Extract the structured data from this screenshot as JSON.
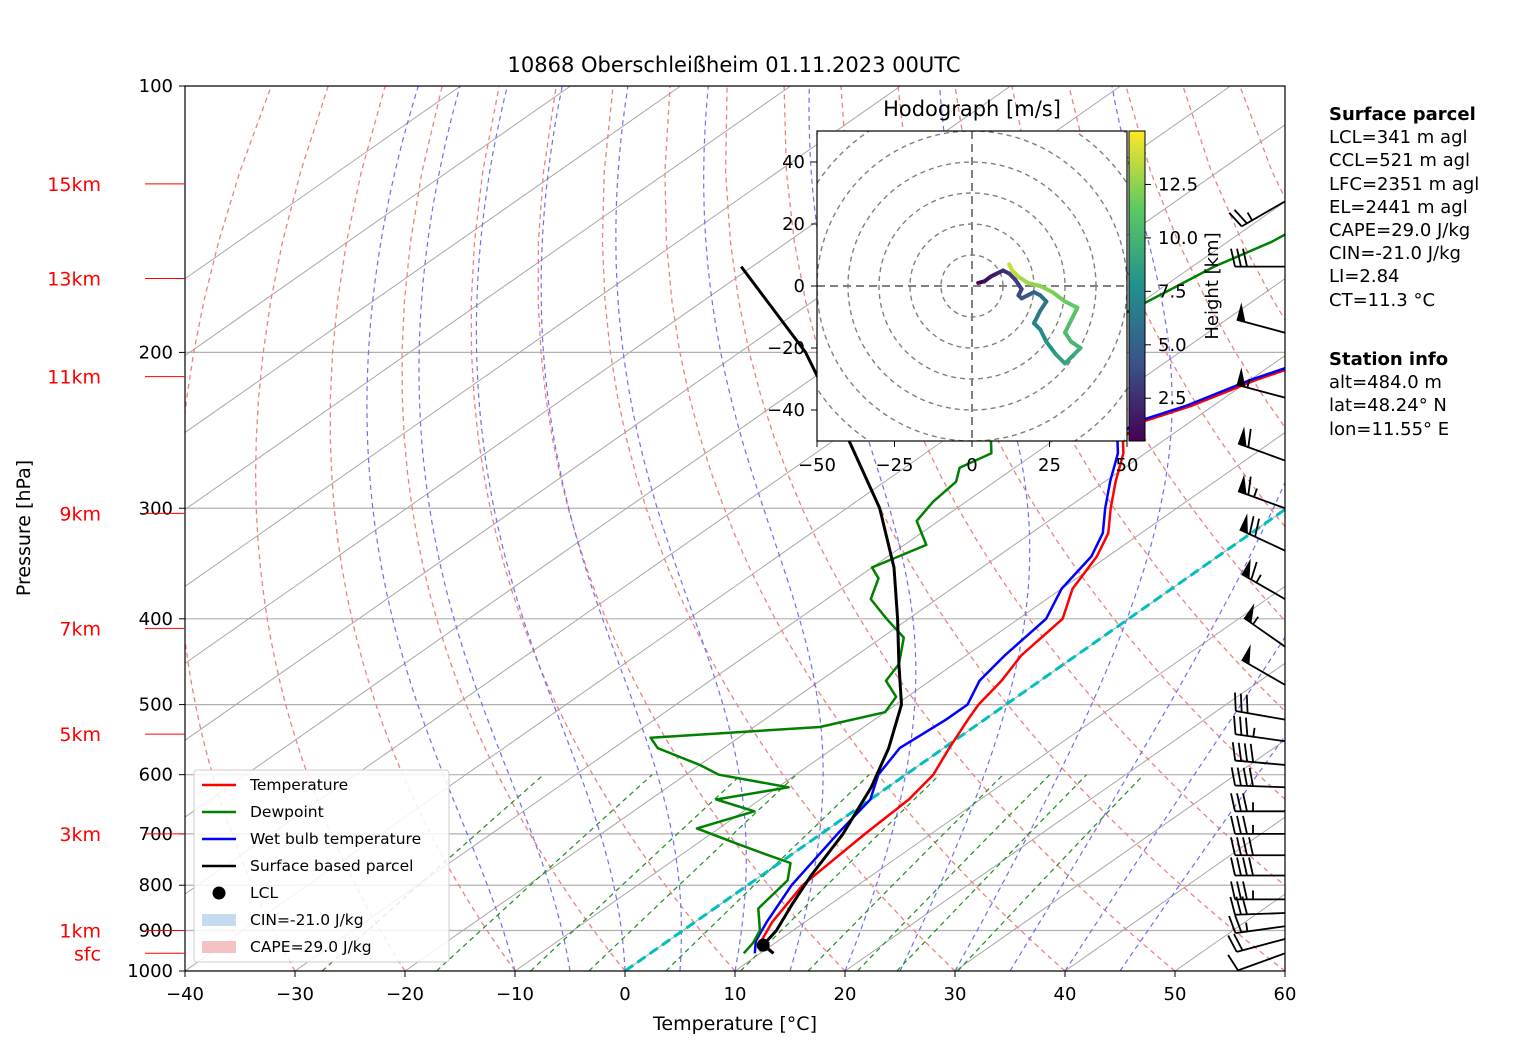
{
  "chart_data": {
    "type": "line",
    "subtype": "skew-t log-p sounding diagram",
    "title": "10868 Oberschleißheim 01.11.2023 00UTC",
    "xlabel": "Temperature [°C]",
    "ylabel": "Pressure [hPa]",
    "xlim": [
      -40,
      60
    ],
    "ylim": [
      1000,
      100
    ],
    "yscale": "log",
    "x_ticks": [
      "−40",
      "−30",
      "−20",
      "−10",
      "0",
      "10",
      "20",
      "30",
      "40",
      "50",
      "60"
    ],
    "y_ticks": [
      "100",
      "200",
      "300",
      "400",
      "500",
      "600",
      "700",
      "800",
      "900",
      "1000"
    ],
    "grid": true,
    "height_labels": [
      {
        "label": "15km",
        "p": 129
      },
      {
        "label": "13km",
        "p": 165
      },
      {
        "label": "11km",
        "p": 213
      },
      {
        "label": "9km",
        "p": 304
      },
      {
        "label": "7km",
        "p": 410
      },
      {
        "label": "5km",
        "p": 540
      },
      {
        "label": "3km",
        "p": 700
      },
      {
        "label": "1km",
        "p": 900
      },
      {
        "label": "sfc",
        "p": 955
      }
    ],
    "legend": {
      "position": "lower-left",
      "entries": [
        {
          "label": "Temperature",
          "color": "#ff0000",
          "kind": "line"
        },
        {
          "label": "Dewpoint",
          "color": "#008000",
          "kind": "line"
        },
        {
          "label": "Wet bulb temperature",
          "color": "#0000ff",
          "kind": "line"
        },
        {
          "label": "Surface based parcel",
          "color": "#000000",
          "kind": "line"
        },
        {
          "label": "LCL",
          "color": "#000000",
          "kind": "marker"
        },
        {
          "label": "CIN=-21.0 J/kg",
          "color": "#c6dbef",
          "kind": "patch"
        },
        {
          "label": "CAPE=29.0 J/kg",
          "color": "#f4c2c2",
          "kind": "patch"
        }
      ]
    },
    "series": [
      {
        "name": "Temperature",
        "color": "#ff0000",
        "points": [
          [
            11.2,
            955
          ],
          [
            8.5,
            925
          ],
          [
            7.0,
            880
          ],
          [
            5.0,
            800
          ],
          [
            4.0,
            700
          ],
          [
            3.5,
            640
          ],
          [
            2.5,
            600
          ],
          [
            0.5,
            560
          ],
          [
            -1.5,
            520
          ],
          [
            -2.5,
            500
          ],
          [
            -3.5,
            470
          ],
          [
            -5.0,
            440
          ],
          [
            -6.0,
            400
          ],
          [
            -9.0,
            370
          ],
          [
            -11.0,
            340
          ],
          [
            -13.0,
            320
          ],
          [
            -16.0,
            300
          ],
          [
            -19.0,
            280
          ],
          [
            -22.0,
            260
          ],
          [
            -24.0,
            250
          ],
          [
            -24.5,
            240
          ],
          [
            -22.0,
            230
          ],
          [
            -19.5,
            215
          ],
          [
            -17.0,
            205
          ],
          [
            -14.0,
            200
          ],
          [
            -11.0,
            190
          ],
          [
            -8.0,
            180
          ],
          [
            -5.0,
            172
          ],
          [
            -3.0,
            165
          ],
          [
            -1.0,
            158
          ],
          [
            1.0,
            150
          ],
          [
            3.0,
            142
          ],
          [
            6.0,
            136
          ],
          [
            9.5,
            133
          ],
          [
            9.0,
            129
          ],
          [
            8.0,
            127
          ]
        ]
      },
      {
        "name": "Wet bulb temperature",
        "color": "#0000ff",
        "points": [
          [
            9.5,
            955
          ],
          [
            8.0,
            925
          ],
          [
            6.5,
            880
          ],
          [
            4.0,
            800
          ],
          [
            1.5,
            700
          ],
          [
            0.0,
            640
          ],
          [
            -2.5,
            600
          ],
          [
            -4.0,
            560
          ],
          [
            -3.5,
            520
          ],
          [
            -3.5,
            500
          ],
          [
            -5.5,
            470
          ],
          [
            -6.5,
            440
          ],
          [
            -7.5,
            400
          ],
          [
            -10.0,
            370
          ],
          [
            -11.5,
            340
          ],
          [
            -13.5,
            320
          ],
          [
            -16.5,
            300
          ],
          [
            -19.5,
            280
          ],
          [
            -22.5,
            260
          ],
          [
            -24.5,
            250
          ],
          [
            -25.0,
            240
          ],
          [
            -22.5,
            230
          ],
          [
            -20.0,
            215
          ],
          [
            -17.5,
            205
          ],
          [
            -14.5,
            200
          ],
          [
            -11.5,
            190
          ],
          [
            -8.5,
            180
          ],
          [
            -5.5,
            172
          ],
          [
            -3.5,
            165
          ],
          [
            -1.5,
            158
          ],
          [
            0.5,
            150
          ],
          [
            2.5,
            142
          ],
          [
            5.5,
            136
          ],
          [
            8.5,
            133
          ],
          [
            8.0,
            129
          ],
          [
            7.5,
            127
          ]
        ]
      },
      {
        "name": "Dewpoint",
        "color": "#008000",
        "points": [
          [
            8.5,
            955
          ],
          [
            8.0,
            930
          ],
          [
            7.0,
            900
          ],
          [
            4.0,
            850
          ],
          [
            3.0,
            790
          ],
          [
            1.0,
            755
          ],
          [
            -2.0,
            740
          ],
          [
            -6.0,
            720
          ],
          [
            -12.0,
            690
          ],
          [
            -9.0,
            660
          ],
          [
            -14.0,
            640
          ],
          [
            -9.0,
            620
          ],
          [
            -17.0,
            600
          ],
          [
            -20.0,
            585
          ],
          [
            -26.0,
            560
          ],
          [
            -28.0,
            545
          ],
          [
            -14.0,
            530
          ],
          [
            -10.0,
            510
          ],
          [
            -11.0,
            490
          ],
          [
            -14.0,
            470
          ],
          [
            -15.0,
            450
          ],
          [
            -18.0,
            420
          ],
          [
            -22.0,
            400
          ],
          [
            -26.0,
            380
          ],
          [
            -28.0,
            360
          ],
          [
            -30.0,
            350
          ],
          [
            -28.0,
            330
          ],
          [
            -32.0,
            310
          ],
          [
            -33.0,
            295
          ],
          [
            -33.5,
            280
          ],
          [
            -35.0,
            270
          ],
          [
            -34.0,
            260
          ],
          [
            -36.0,
            250
          ],
          [
            -37.0,
            240
          ],
          [
            -37.0,
            230
          ],
          [
            -38.0,
            220
          ],
          [
            -39.0,
            210
          ],
          [
            -39.0,
            200
          ],
          [
            -40.0,
            190
          ],
          [
            -40.0,
            180
          ],
          [
            -39.0,
            170
          ],
          [
            -38.0,
            160
          ],
          [
            -36.0,
            150
          ],
          [
            -35.0,
            140
          ],
          [
            -33.0,
            133
          ],
          [
            -32.0,
            129
          ]
        ]
      },
      {
        "name": "Surface based parcel",
        "color": "#000000",
        "points": [
          [
            11.2,
            955
          ],
          [
            9.2,
            935
          ],
          [
            8.5,
            900
          ],
          [
            6.5,
            840
          ],
          [
            4.5,
            780
          ],
          [
            2.0,
            700
          ],
          [
            -1.5,
            620
          ],
          [
            -5.0,
            560
          ],
          [
            -9.5,
            500
          ],
          [
            -15.0,
            450
          ],
          [
            -21.0,
            400
          ],
          [
            -28.0,
            350
          ],
          [
            -37.0,
            300
          ],
          [
            -49.0,
            250
          ],
          [
            -64.0,
            200
          ],
          [
            -81.0,
            160
          ]
        ]
      }
    ],
    "lcl": {
      "t": 9.2,
      "p": 935
    },
    "cape_cin": {
      "cin": "CIN=-21.0 J/kg",
      "cape": "CAPE=29.0 J/kg"
    },
    "wind_barbs": [
      {
        "p": 955,
        "speed_kt": 10,
        "dir": 250
      },
      {
        "p": 920,
        "speed_kt": 20,
        "dir": 255
      },
      {
        "p": 890,
        "speed_kt": 25,
        "dir": 262
      },
      {
        "p": 860,
        "speed_kt": 30,
        "dir": 268
      },
      {
        "p": 830,
        "speed_kt": 35,
        "dir": 270
      },
      {
        "p": 780,
        "speed_kt": 40,
        "dir": 270
      },
      {
        "p": 740,
        "speed_kt": 40,
        "dir": 270
      },
      {
        "p": 700,
        "speed_kt": 35,
        "dir": 270
      },
      {
        "p": 660,
        "speed_kt": 35,
        "dir": 270
      },
      {
        "p": 620,
        "speed_kt": 40,
        "dir": 272
      },
      {
        "p": 585,
        "speed_kt": 40,
        "dir": 275
      },
      {
        "p": 550,
        "speed_kt": 35,
        "dir": 278
      },
      {
        "p": 520,
        "speed_kt": 30,
        "dir": 280
      },
      {
        "p": 475,
        "speed_kt": 50,
        "dir": 300
      },
      {
        "p": 430,
        "speed_kt": 55,
        "dir": 305
      },
      {
        "p": 380,
        "speed_kt": 65,
        "dir": 300
      },
      {
        "p": 335,
        "speed_kt": 70,
        "dir": 295
      },
      {
        "p": 300,
        "speed_kt": 65,
        "dir": 290
      },
      {
        "p": 265,
        "speed_kt": 60,
        "dir": 290
      },
      {
        "p": 225,
        "speed_kt": 55,
        "dir": 285
      },
      {
        "p": 190,
        "speed_kt": 50,
        "dir": 285
      },
      {
        "p": 160,
        "speed_kt": 30,
        "dir": 270
      },
      {
        "p": 135,
        "speed_kt": 25,
        "dir": 240
      }
    ],
    "hodograph": {
      "title": "Hodograph [m/s]",
      "xlim": [
        -50,
        50
      ],
      "ylim": [
        -50,
        50
      ],
      "x_ticks": [
        "−50",
        "−25",
        "0",
        "25",
        "50"
      ],
      "y_ticks": [
        "40",
        "20",
        "0",
        "−20",
        "−40"
      ],
      "colorbar_label": "Height [km]",
      "colorbar_ticks": [
        "12.5",
        "10.0",
        "7.5",
        "5.0",
        "2.5"
      ],
      "colorbar_range": [
        0.5,
        15
      ],
      "colormap": [
        "#440154",
        "#3b528b",
        "#21918c",
        "#5ec962",
        "#fde725"
      ],
      "points": [
        [
          2,
          1,
          0.5
        ],
        [
          4,
          1.5,
          1
        ],
        [
          6,
          3,
          1.5
        ],
        [
          8,
          4,
          2
        ],
        [
          10,
          5,
          2.5
        ],
        [
          12,
          4,
          3
        ],
        [
          14,
          2,
          3.2
        ],
        [
          16,
          -1,
          3.5
        ],
        [
          15,
          -3,
          3.8
        ],
        [
          16,
          -4,
          4.2
        ],
        [
          18,
          -3,
          4.6
        ],
        [
          20,
          -2,
          5
        ],
        [
          22,
          -3,
          5.5
        ],
        [
          24,
          -5,
          6
        ],
        [
          22,
          -8,
          6.5
        ],
        [
          20,
          -12,
          7
        ],
        [
          22,
          -14,
          7.5
        ],
        [
          24,
          -18,
          8
        ],
        [
          27,
          -22,
          8.5
        ],
        [
          30,
          -25,
          9
        ],
        [
          33,
          -22,
          9.5
        ],
        [
          35,
          -20,
          10
        ],
        [
          32,
          -18,
          10.3
        ],
        [
          30,
          -15,
          10.6
        ],
        [
          32,
          -11,
          11
        ],
        [
          34,
          -7,
          11.4
        ],
        [
          30,
          -5,
          11.8
        ],
        [
          26,
          -2,
          12.2
        ],
        [
          22,
          0,
          12.6
        ],
        [
          18,
          1,
          13
        ],
        [
          15,
          3,
          13.4
        ],
        [
          13,
          5,
          13.8
        ],
        [
          12,
          7,
          14.2
        ]
      ]
    }
  },
  "surface_parcel": {
    "heading": "Surface parcel",
    "lines": [
      "LCL=341 m agl",
      "CCL=521 m agl",
      "LFC=2351 m agl",
      "EL=2441 m agl",
      "CAPE=29.0 J/kg",
      "CIN=-21.0 J/kg",
      "LI=2.84",
      "CT=11.3 °C"
    ]
  },
  "station_info": {
    "heading": "Station info",
    "lines": [
      "alt=484.0 m",
      "lat=48.24° N",
      "lon=11.55° E"
    ]
  }
}
